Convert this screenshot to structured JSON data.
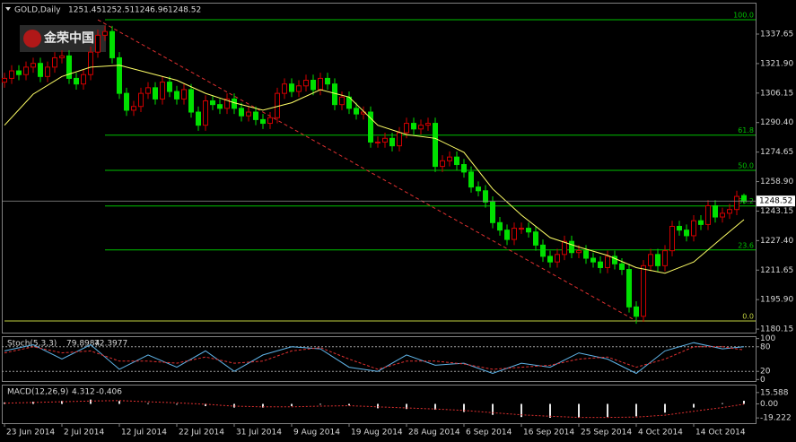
{
  "chart_data": {
    "type": "candlestick",
    "title": "GOLD,Daily",
    "watermark": "金荣中国",
    "up_color": "#d00000",
    "down_color": "#00e000",
    "open": [
      1312,
      1314,
      1318,
      1316,
      1320,
      1322,
      1315,
      1320,
      1325,
      1326,
      1314,
      1311,
      1316,
      1328,
      1337,
      1339,
      1325,
      1306,
      1297,
      1299,
      1306,
      1309,
      1303,
      1312,
      1307,
      1303,
      1308,
      1296,
      1289,
      1302,
      1300,
      1298,
      1303,
      1298,
      1294,
      1296,
      1292,
      1290,
      1293,
      1306,
      1311,
      1307,
      1310,
      1313,
      1308,
      1314,
      1311,
      1300,
      1304,
      1298,
      1295,
      1296,
      1280,
      1280,
      1282,
      1278,
      1285,
      1290,
      1287,
      1289,
      1290,
      1267,
      1270,
      1272,
      1268,
      1264,
      1256,
      1254,
      1248,
      1237,
      1233,
      1228,
      1234,
      1234,
      1232,
      1225,
      1219,
      1216,
      1220,
      1227,
      1221,
      1222,
      1218,
      1216,
      1213,
      1219,
      1215,
      1212,
      1192,
      1187,
      1214,
      1220,
      1214,
      1222,
      1235,
      1233,
      1230,
      1238,
      1236,
      1246,
      1240,
      1242,
      1244,
      1251.45
    ],
    "high": [
      1317,
      1321,
      1321,
      1323,
      1325,
      1325,
      1323,
      1328,
      1329,
      1329,
      1317,
      1319,
      1331,
      1340,
      1342,
      1342,
      1328,
      1309,
      1302,
      1309,
      1312,
      1312,
      1315,
      1315,
      1310,
      1311,
      1311,
      1299,
      1305,
      1305,
      1303,
      1306,
      1306,
      1301,
      1299,
      1299,
      1295,
      1296,
      1309,
      1314,
      1314,
      1313,
      1316,
      1316,
      1317,
      1317,
      1314,
      1307,
      1307,
      1301,
      1299,
      1299,
      1283,
      1285,
      1285,
      1288,
      1293,
      1293,
      1292,
      1293,
      1293,
      1273,
      1275,
      1275,
      1271,
      1267,
      1259,
      1257,
      1251,
      1240,
      1236,
      1237,
      1237,
      1237,
      1235,
      1228,
      1222,
      1223,
      1230,
      1230,
      1225,
      1225,
      1221,
      1219,
      1222,
      1222,
      1218,
      1215,
      1195,
      1217,
      1223,
      1223,
      1225,
      1238,
      1238,
      1236,
      1241,
      1241,
      1249,
      1249,
      1245,
      1247,
      1254,
      1252.51
    ],
    "low": [
      1309,
      1311,
      1313,
      1313,
      1317,
      1312,
      1312,
      1317,
      1322,
      1311,
      1308,
      1308,
      1313,
      1325,
      1334,
      1322,
      1303,
      1294,
      1294,
      1296,
      1303,
      1300,
      1300,
      1304,
      1300,
      1300,
      1293,
      1286,
      1286,
      1297,
      1295,
      1295,
      1295,
      1291,
      1291,
      1289,
      1287,
      1287,
      1290,
      1303,
      1304,
      1304,
      1307,
      1305,
      1305,
      1308,
      1297,
      1297,
      1295,
      1292,
      1292,
      1277,
      1277,
      1277,
      1275,
      1275,
      1282,
      1284,
      1284,
      1286,
      1264,
      1264,
      1267,
      1265,
      1261,
      1253,
      1251,
      1245,
      1234,
      1230,
      1225,
      1225,
      1231,
      1229,
      1222,
      1216,
      1213,
      1213,
      1217,
      1218,
      1218,
      1215,
      1213,
      1210,
      1210,
      1212,
      1209,
      1189,
      1183,
      1184,
      1211,
      1211,
      1211,
      1219,
      1230,
      1227,
      1227,
      1233,
      1233,
      1237,
      1237,
      1239,
      1241,
      1246.96
    ],
    "close": [
      1314,
      1318,
      1316,
      1320,
      1322,
      1315,
      1320,
      1325,
      1326,
      1314,
      1311,
      1316,
      1328,
      1337,
      1339,
      1325,
      1306,
      1297,
      1299,
      1306,
      1309,
      1303,
      1312,
      1307,
      1303,
      1308,
      1296,
      1289,
      1302,
      1300,
      1298,
      1303,
      1298,
      1294,
      1296,
      1292,
      1290,
      1293,
      1306,
      1311,
      1307,
      1310,
      1313,
      1308,
      1314,
      1311,
      1300,
      1304,
      1298,
      1295,
      1296,
      1280,
      1280,
      1282,
      1278,
      1285,
      1290,
      1287,
      1289,
      1290,
      1267,
      1270,
      1272,
      1268,
      1264,
      1256,
      1254,
      1248,
      1237,
      1233,
      1228,
      1234,
      1234,
      1232,
      1225,
      1219,
      1216,
      1220,
      1227,
      1221,
      1222,
      1218,
      1216,
      1213,
      1219,
      1215,
      1212,
      1192,
      1187,
      1214,
      1220,
      1214,
      1222,
      1235,
      1233,
      1230,
      1238,
      1236,
      1246,
      1240,
      1242,
      1244,
      1251,
      1248.52
    ],
    "xlim": [
      -0.375,
      104.625
    ],
    "xticks": [
      {
        "value": 0,
        "label": "23 Jun 2014"
      },
      {
        "value": 8,
        "label": "2 Jul 2014"
      },
      {
        "value": 16,
        "label": "12 Jul 2014"
      },
      {
        "value": 24,
        "label": "22 Jul 2014"
      },
      {
        "value": 32,
        "label": "31 Jul 2014"
      },
      {
        "value": 40,
        "label": "9 Aug 2014"
      },
      {
        "value": 48,
        "label": "19 Aug 2014"
      },
      {
        "value": 56,
        "label": "28 Aug 2014"
      },
      {
        "value": 64,
        "label": "6 Sep 2014"
      },
      {
        "value": 72,
        "label": "16 Sep 2014"
      },
      {
        "value": 80,
        "label": "25 Sep 2014"
      },
      {
        "value": 88,
        "label": "4 Oct 2014"
      },
      {
        "value": 96,
        "label": "14 Oct 2014"
      }
    ],
    "ylim": [
      1177.8,
      1354.4
    ],
    "yticks": [
      1337.65,
      {
        "value": 1321.9,
        "label": "1321.90"
      },
      1306.15,
      {
        "value": 1290.4,
        "label": "1290.40"
      },
      1274.65,
      {
        "value": 1258.9,
        "label": "1258.90"
      },
      1243.15,
      {
        "value": 1227.4,
        "label": "1227.40"
      },
      1211.65,
      {
        "value": 1195.9,
        "label": "1195.90"
      },
      1180.15
    ],
    "ma": {
      "color": "#ffff66",
      "x": [
        0,
        4,
        8,
        12,
        16,
        20,
        24,
        28,
        32,
        36,
        40,
        44,
        48,
        52,
        56,
        60,
        64,
        68,
        72,
        76,
        80,
        84,
        88,
        92,
        96,
        100,
        103
      ],
      "values": [
        1289,
        1305.6,
        1315,
        1320,
        1321,
        1317,
        1313,
        1306,
        1301,
        1297,
        1301,
        1308,
        1304,
        1289,
        1284,
        1282,
        1274.5,
        1255,
        1241,
        1229,
        1224,
        1219.5,
        1213,
        1210,
        1216,
        1229,
        1238.6
      ]
    },
    "trendline": {
      "color": "#e03030",
      "x": [
        13,
        88
      ],
      "y": [
        1345.3,
        1184.5
      ]
    },
    "fib": {
      "color": "#00c000",
      "x_start": 14,
      "levels": [
        {
          "label": "100.0",
          "price": 1345.3
        },
        {
          "label": "61.8",
          "price": 1283.7
        },
        {
          "label": "50.0",
          "price": 1264.9
        },
        {
          "label": "38.2",
          "price": 1245.9
        },
        {
          "label": "23.6",
          "price": 1222.4
        },
        {
          "label": "0.0",
          "price": 1184.5
        }
      ]
    },
    "stoch": {
      "title": "Stoch(5,3,3)",
      "ylim": [
        -5.8,
        103.6
      ],
      "yticks": [
        0,
        20,
        80,
        100
      ],
      "levels": [
        20,
        80
      ],
      "x": [
        0,
        4,
        8,
        12,
        16,
        20,
        24,
        28,
        32,
        36,
        40,
        44,
        48,
        52,
        56,
        60,
        64,
        68,
        72,
        76,
        80,
        84,
        88,
        92,
        96,
        100,
        103
      ],
      "main": {
        "color": "#5fb4e8",
        "values": [
          70,
          85,
          50,
          85,
          25,
          60,
          30,
          70,
          20,
          60,
          80,
          75,
          30,
          20,
          60,
          35,
          40,
          15,
          40,
          30,
          65,
          50,
          15,
          70,
          90,
          75,
          79.8984
        ]
      },
      "signal": {
        "color": "#e03030",
        "values": [
          65,
          80,
          65,
          70,
          45,
          45,
          40,
          55,
          40,
          45,
          70,
          78,
          50,
          25,
          45,
          45,
          38,
          25,
          30,
          35,
          50,
          55,
          30,
          50,
          80,
          80,
          72.3977
        ]
      }
    },
    "macd": {
      "title": "MACD(12,26,9)",
      "ylim": [
        -26.4,
        25.2
      ],
      "yticks": [
        15.588,
        {
          "value": 0,
          "label": "0.00"
        },
        -19.222
      ],
      "x": [
        0,
        4,
        8,
        12,
        16,
        20,
        24,
        28,
        32,
        36,
        40,
        44,
        48,
        52,
        56,
        60,
        64,
        68,
        72,
        76,
        80,
        84,
        88,
        92,
        96,
        100,
        103
      ],
      "main": {
        "color": "#e8e8e8",
        "values": [
          2,
          3,
          4,
          6,
          4,
          1,
          -1,
          -3,
          -5,
          -5,
          -3,
          -1,
          -2,
          -6,
          -7,
          -8,
          -11,
          -15,
          -18,
          -19,
          -19,
          -18,
          -17,
          -12,
          -5,
          1,
          4.312
        ]
      },
      "signal": {
        "color": "#e03030",
        "values": [
          1,
          2,
          3,
          4,
          4.5,
          3,
          1.5,
          -0.5,
          -3,
          -4,
          -4,
          -3,
          -2.5,
          -4,
          -5.5,
          -7,
          -9,
          -12,
          -15,
          -17,
          -18.5,
          -18.5,
          -18,
          -15.5,
          -10,
          -5,
          -0.406
        ]
      }
    }
  }
}
